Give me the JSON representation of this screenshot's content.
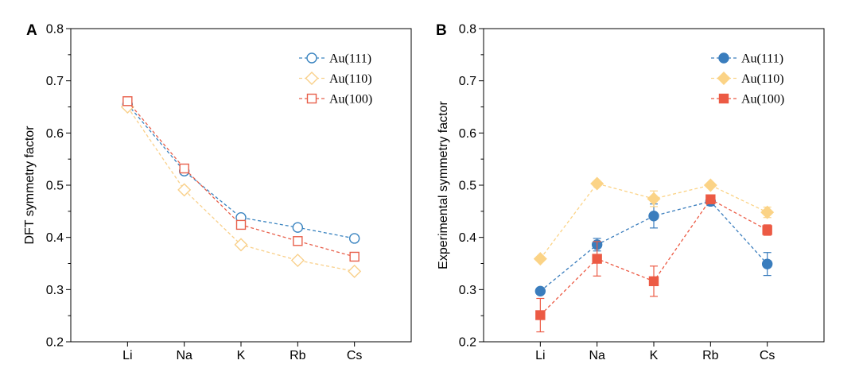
{
  "chart_data": [
    {
      "panel": "A",
      "type": "line",
      "categories": [
        "Li",
        "Na",
        "K",
        "Rb",
        "Cs"
      ],
      "ylabel": "DFT symmetry factor",
      "xlabel": "",
      "ylim": [
        0.2,
        0.8
      ],
      "yticks": [
        "0.2",
        "0.3",
        "0.4",
        "0.5",
        "0.6",
        "0.7",
        "0.8"
      ],
      "legend_position": "top-right",
      "series": [
        {
          "name": "Au(111)",
          "color": "#3a84c0",
          "marker": "circle",
          "filled": false,
          "values": [
            0.655,
            0.527,
            0.438,
            0.419,
            0.398
          ]
        },
        {
          "name": "Au(110)",
          "color": "#f9d08a",
          "marker": "diamond",
          "filled": false,
          "values": [
            0.65,
            0.491,
            0.386,
            0.356,
            0.335
          ]
        },
        {
          "name": "Au(100)",
          "color": "#e8604b",
          "marker": "square",
          "filled": false,
          "values": [
            0.661,
            0.532,
            0.424,
            0.393,
            0.363
          ]
        }
      ]
    },
    {
      "panel": "B",
      "type": "line",
      "categories": [
        "Li",
        "Na",
        "K",
        "Rb",
        "Cs"
      ],
      "ylabel": "Experimental symmetry factor",
      "xlabel": "",
      "ylim": [
        0.2,
        0.8
      ],
      "yticks": [
        "0.2",
        "0.3",
        "0.4",
        "0.5",
        "0.6",
        "0.7",
        "0.8"
      ],
      "legend_position": "top-right",
      "series": [
        {
          "name": "Au(111)",
          "color": "#3a7dbd",
          "marker": "circle",
          "filled": true,
          "values": [
            0.297,
            0.386,
            0.441,
            0.469,
            0.349
          ],
          "errors": [
            0.004,
            0.012,
            0.023,
            0.008,
            0.022
          ]
        },
        {
          "name": "Au(110)",
          "color": "#fbd386",
          "marker": "diamond",
          "filled": true,
          "values": [
            0.359,
            0.503,
            0.474,
            0.5,
            0.448
          ],
          "errors": [
            0.004,
            0.004,
            0.015,
            0.004,
            0.01
          ]
        },
        {
          "name": "Au(100)",
          "color": "#ec5a44",
          "marker": "square",
          "filled": true,
          "values": [
            0.251,
            0.359,
            0.316,
            0.473,
            0.414
          ],
          "errors": [
            0.032,
            0.033,
            0.029,
            0.004,
            0.01
          ]
        }
      ]
    }
  ]
}
